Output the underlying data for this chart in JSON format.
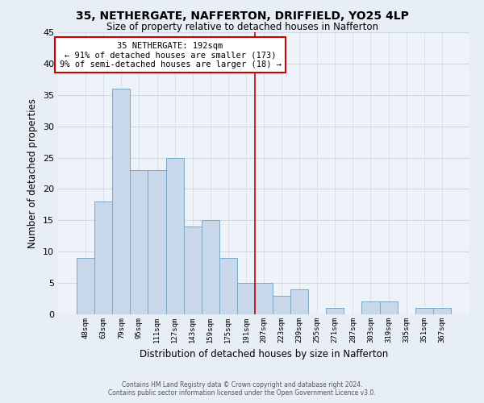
{
  "title": "35, NETHERGATE, NAFFERTON, DRIFFIELD, YO25 4LP",
  "subtitle": "Size of property relative to detached houses in Nafferton",
  "xlabel": "Distribution of detached houses by size in Nafferton",
  "ylabel": "Number of detached properties",
  "bar_labels": [
    "48sqm",
    "63sqm",
    "79sqm",
    "95sqm",
    "111sqm",
    "127sqm",
    "143sqm",
    "159sqm",
    "175sqm",
    "191sqm",
    "207sqm",
    "223sqm",
    "239sqm",
    "255sqm",
    "271sqm",
    "287sqm",
    "303sqm",
    "319sqm",
    "335sqm",
    "351sqm",
    "367sqm"
  ],
  "bar_values": [
    9,
    18,
    36,
    23,
    23,
    25,
    14,
    15,
    9,
    5,
    5,
    3,
    4,
    0,
    1,
    0,
    2,
    2,
    0,
    1,
    1
  ],
  "bar_color": "#c8d8ea",
  "bar_edgecolor": "#7aaac8",
  "ylim": [
    0,
    45
  ],
  "yticks": [
    0,
    5,
    10,
    15,
    20,
    25,
    30,
    35,
    40,
    45
  ],
  "vline_x": 9.5,
  "vline_color": "#cc0000",
  "annotation_title": "35 NETHERGATE: 192sqm",
  "annotation_line1": "← 91% of detached houses are smaller (173)",
  "annotation_line2": "9% of semi-detached houses are larger (18) →",
  "footer_line1": "Contains HM Land Registry data © Crown copyright and database right 2024.",
  "footer_line2": "Contains public sector information licensed under the Open Government Licence v3.0.",
  "bg_color": "#e8eef5",
  "plot_bg_color": "#eef3f9",
  "grid_color": "#d0d8e4"
}
